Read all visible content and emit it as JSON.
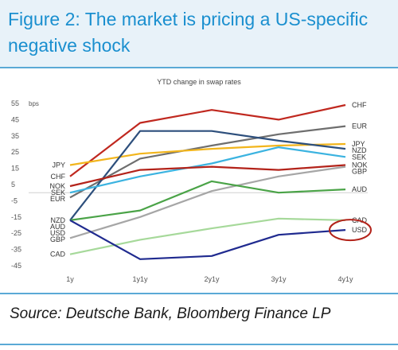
{
  "figure": {
    "title": "Figure 2: The market is pricing a US-specific negative shock",
    "source": "Source: Deutsche Bank, Bloomberg Finance LP"
  },
  "chart_data": {
    "type": "line",
    "title": "YTD change in swap rates",
    "ylabel": "bps",
    "categories": [
      "1y",
      "1y1y",
      "2y1y",
      "3y1y",
      "4y1y"
    ],
    "ylim": [
      -45,
      55
    ],
    "yticks": [
      55,
      45,
      35,
      25,
      15,
      5,
      -5,
      -15,
      -25,
      -35,
      -45
    ],
    "grid": false,
    "zero_line": true,
    "series": [
      {
        "name": "CHF",
        "color": "#c0281f",
        "start_label": "CHF",
        "values": [
          10,
          43,
          51,
          45,
          54
        ]
      },
      {
        "name": "EUR",
        "color": "#6e6e6e",
        "start_label": "EUR",
        "values": [
          -3,
          21,
          29,
          36,
          41
        ]
      },
      {
        "name": "JPY",
        "color": "#f2b51c",
        "start_label": "JPY",
        "values": [
          17,
          24,
          27,
          29,
          30
        ]
      },
      {
        "name": "NZD",
        "color": "#2d4f7c",
        "start_label": "NZD",
        "values": [
          -17,
          38,
          38,
          32,
          27
        ]
      },
      {
        "name": "SEK",
        "color": "#3bb3e0",
        "start_label": "SEK",
        "values": [
          0,
          10,
          18,
          28,
          22
        ]
      },
      {
        "name": "NOK",
        "color": "#b3231a",
        "start_label": "NOK",
        "values": [
          4,
          14,
          16,
          14,
          17
        ]
      },
      {
        "name": "GBP",
        "color": "#a6a6a6",
        "start_label": "GBP",
        "values": [
          -28,
          -15,
          1,
          10,
          16
        ]
      },
      {
        "name": "AUD",
        "color": "#4aa347",
        "start_label": "AUD",
        "values": [
          -17,
          -11,
          7,
          0,
          2
        ]
      },
      {
        "name": "CAD",
        "color": "#a6d99a",
        "start_label": "CAD",
        "values": [
          -38,
          -29,
          -22,
          -16,
          -17
        ]
      },
      {
        "name": "USD",
        "color": "#1f2a8f",
        "start_label": "USD",
        "values": [
          -17,
          -41,
          -39,
          -26,
          -23
        ]
      }
    ],
    "highlight": {
      "series": "USD",
      "color": "#b3231a"
    }
  }
}
